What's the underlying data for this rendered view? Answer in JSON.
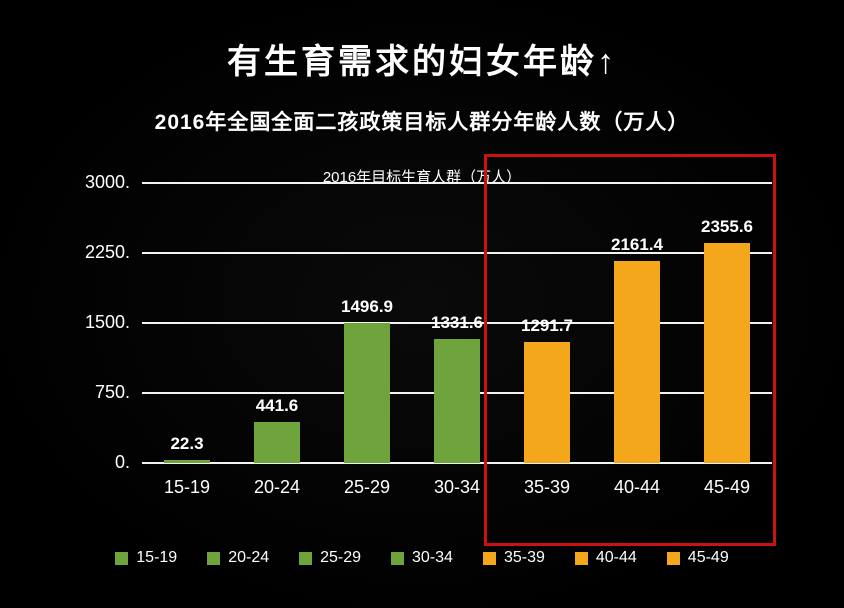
{
  "title": "有生育需求的妇女年龄↑",
  "subtitle": "2016年全国全面二孩政策目标人群分年龄人数（万人）",
  "chart_data": {
    "type": "bar",
    "title": "2016年目标生育人群（万人）",
    "categories": [
      "15-19",
      "20-24",
      "25-29",
      "30-34",
      "35-39",
      "40-44",
      "45-49"
    ],
    "values": [
      22.3,
      441.6,
      1496.9,
      1331.6,
      1291.7,
      2161.4,
      2355.6
    ],
    "bar_colors": [
      "#6fa33c",
      "#6fa33c",
      "#6fa33c",
      "#6fa33c",
      "#f5a71c",
      "#f5a71c",
      "#f5a71c"
    ],
    "ylim": [
      0,
      3000
    ],
    "yticks": [
      0,
      750,
      1500,
      2250,
      3000
    ],
    "ytick_labels": [
      "0.",
      "750.",
      "1500.",
      "2250.",
      "3000."
    ],
    "grid": true,
    "legend_position": "bottom",
    "legend": [
      {
        "label": "15-19",
        "color": "#6fa33c"
      },
      {
        "label": "20-24",
        "color": "#6fa33c"
      },
      {
        "label": "25-29",
        "color": "#6fa33c"
      },
      {
        "label": "30-34",
        "color": "#6fa33c"
      },
      {
        "label": "35-39",
        "color": "#f5a71c"
      },
      {
        "label": "40-44",
        "color": "#f5a71c"
      },
      {
        "label": "45-49",
        "color": "#f5a71c"
      }
    ],
    "highlight": {
      "categories": [
        "35-39",
        "40-44",
        "45-49"
      ],
      "border_color": "#cc1111"
    },
    "colors": {
      "background": "#000000",
      "text": "#ffffff",
      "gridline": "#f2f2f2"
    }
  }
}
